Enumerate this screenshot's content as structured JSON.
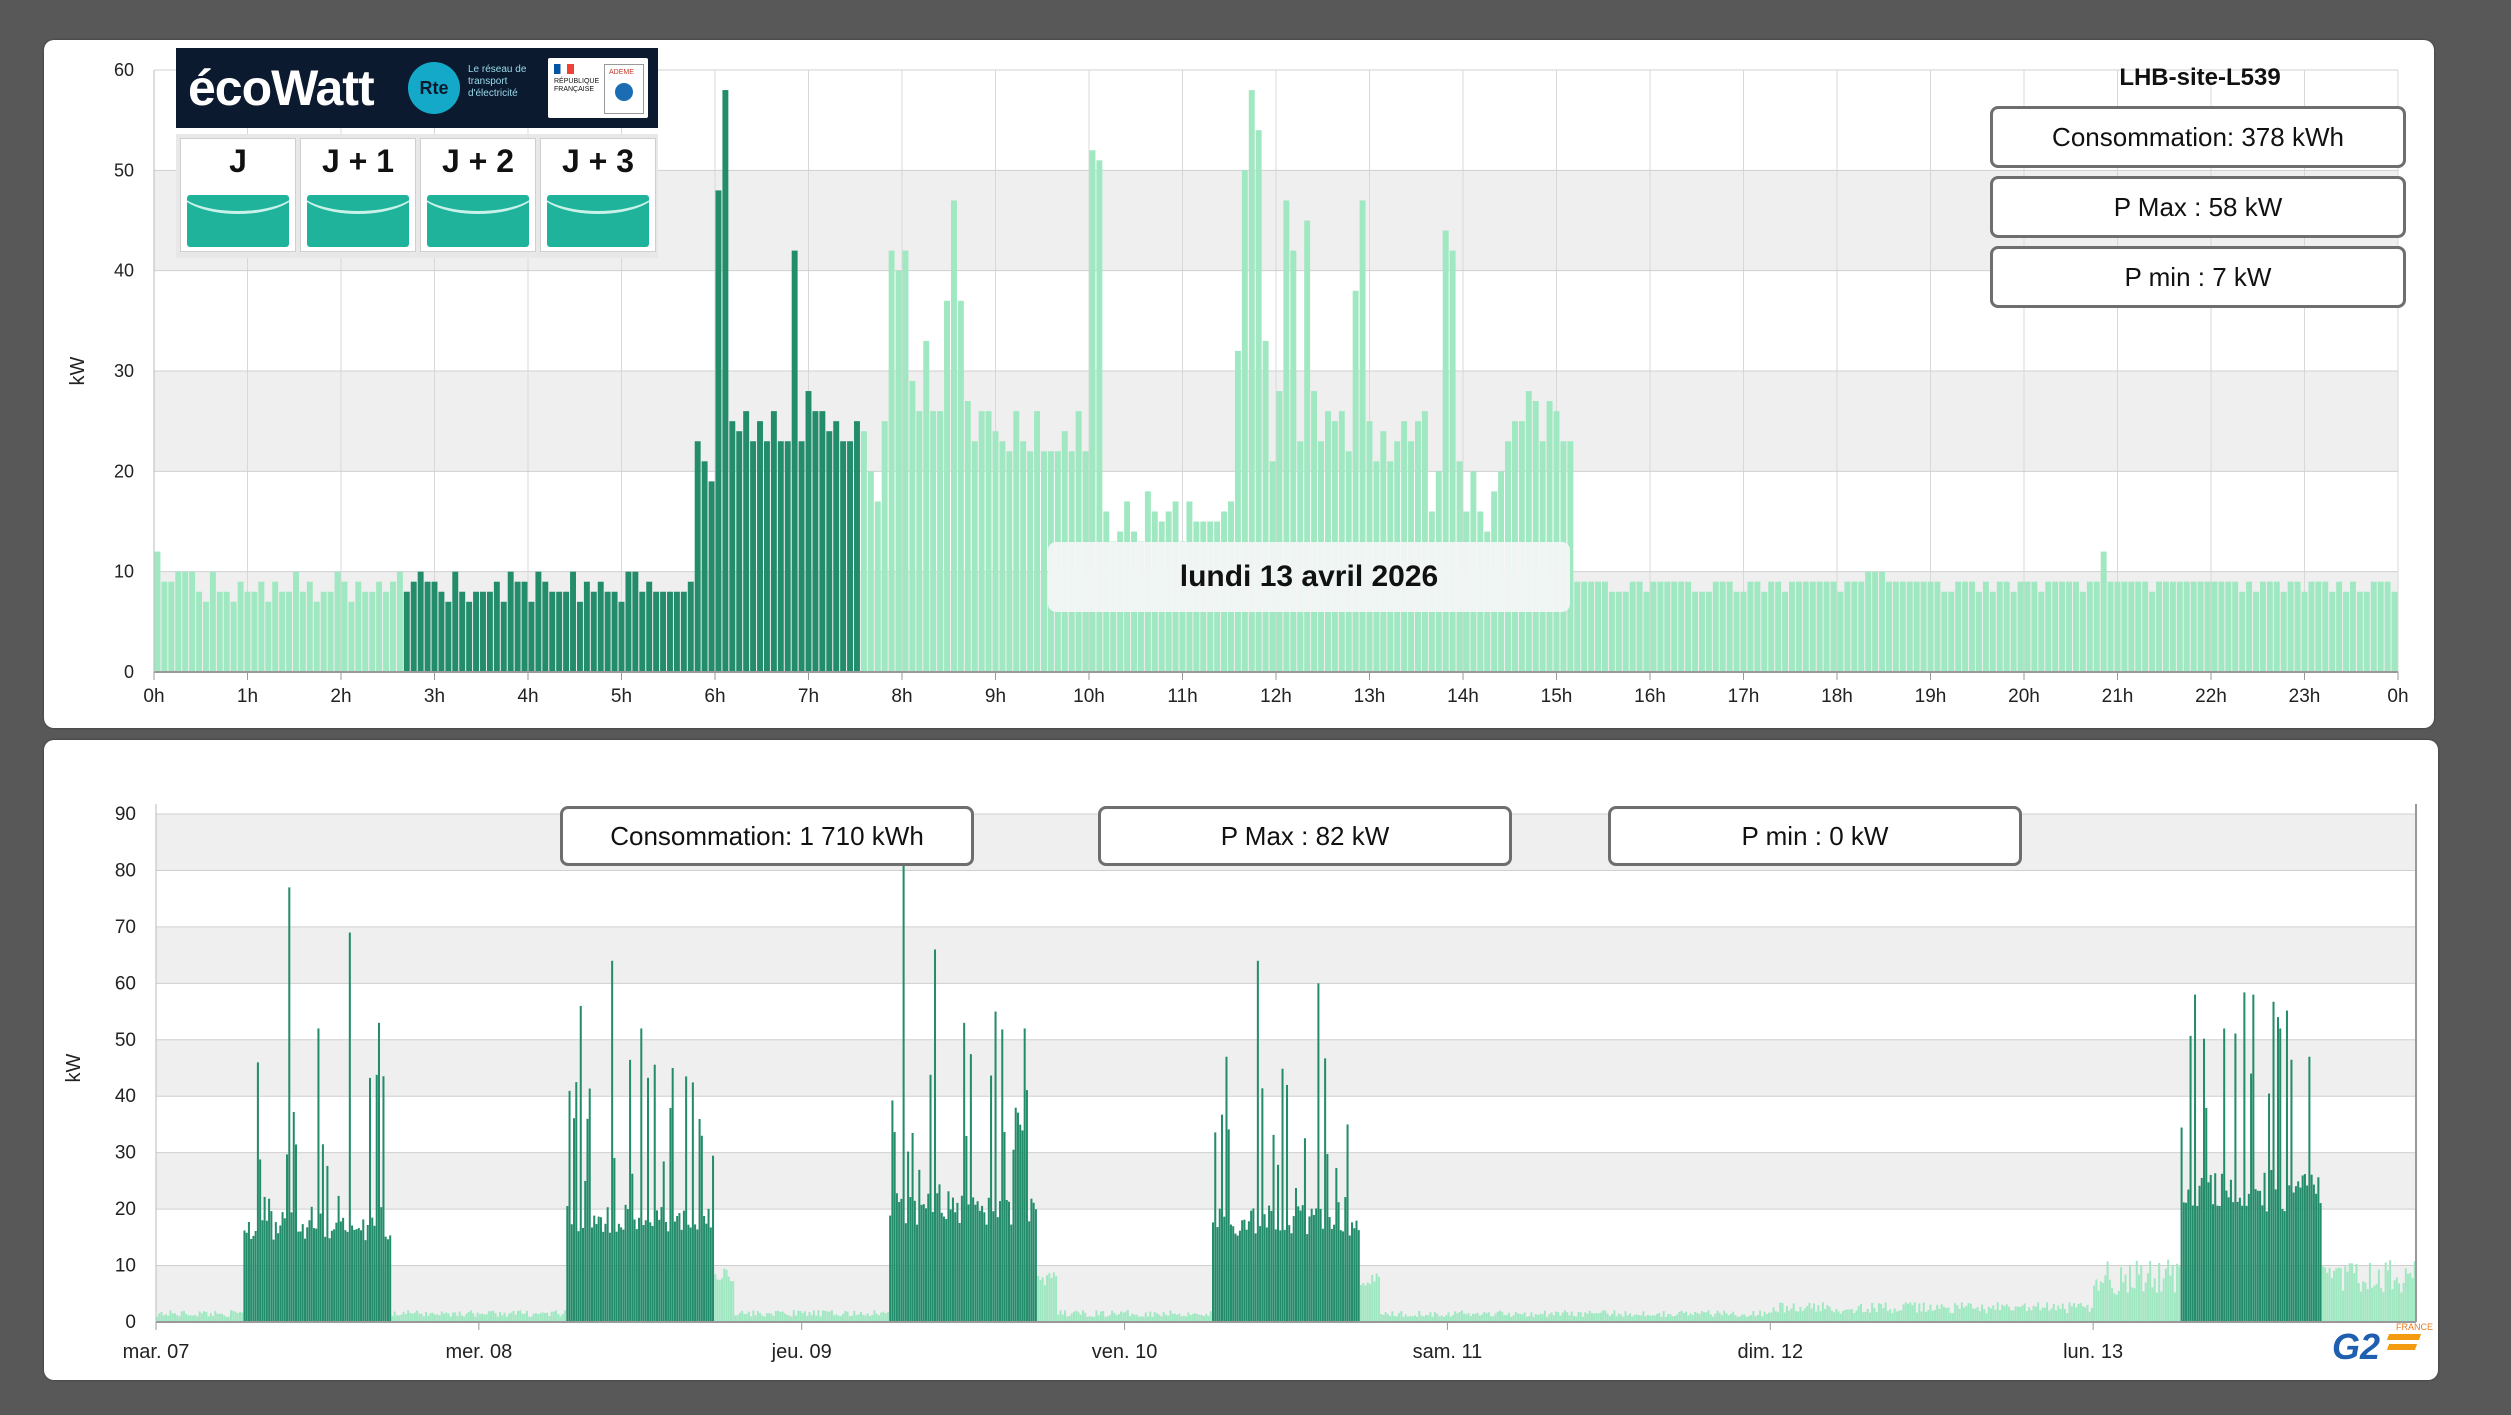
{
  "top_panel": {
    "site_name": "LHB-site-L539",
    "consommation": "Consommation: 378 kWh",
    "pmax": "P Max :  58 kW",
    "pmin": "P min : 7 kW",
    "date": "lundi 13 avril 2026"
  },
  "bottom_panel": {
    "consommation": "Consommation: 1 710 kWh",
    "pmax": "P Max :  82 kW",
    "pmin": "P min : 0 kW"
  },
  "ecowatt": {
    "logo": "écoWatt",
    "rte_badge": "Rte",
    "rte_text": "Le réseau de transport d'électricité",
    "rf_text": "RÉPUBLIQUE FRANÇAISE",
    "ademe": "ADEME",
    "days": [
      "J",
      "J + 1",
      "J + 2",
      "J + 3"
    ],
    "status_color": "#1fb39b"
  },
  "brand": {
    "g2": "G2",
    "france": "FRANCE"
  },
  "colors": {
    "dark_bar": "#238c6a",
    "light_bar": "#9fe8c1",
    "band": "#efefef"
  },
  "chart_data": [
    {
      "type": "bar",
      "ylabel": "kW",
      "ylim": [
        0,
        60
      ],
      "yticks": [
        0,
        10,
        20,
        30,
        40,
        50,
        60
      ],
      "xticks": [
        "0h",
        "1h",
        "2h",
        "3h",
        "4h",
        "5h",
        "6h",
        "7h",
        "8h",
        "9h",
        "10h",
        "11h",
        "12h",
        "13h",
        "14h",
        "15h",
        "16h",
        "17h",
        "18h",
        "19h",
        "20h",
        "21h",
        "22h",
        "23h",
        "0h"
      ],
      "interval_minutes": 10,
      "highlight_range_hours": [
        6,
        17
      ],
      "values": [
        12,
        9,
        9,
        10,
        10,
        10,
        8,
        7,
        10,
        8,
        8,
        7,
        9,
        8,
        8,
        9,
        7,
        9,
        8,
        8,
        10,
        8,
        9,
        7,
        8,
        8,
        10,
        9,
        7,
        9,
        8,
        8,
        9,
        8,
        9,
        10,
        8,
        9,
        10,
        9,
        9,
        8,
        7,
        10,
        8,
        7,
        8,
        8,
        8,
        9,
        7,
        10,
        9,
        9,
        7,
        10,
        9,
        8,
        8,
        8,
        10,
        7,
        9,
        8,
        9,
        8,
        8,
        7,
        10,
        10,
        8,
        9,
        8,
        8,
        8,
        8,
        8,
        9,
        23,
        21,
        19,
        48,
        58,
        25,
        24,
        26,
        23,
        25,
        23,
        26,
        23,
        23,
        42,
        23,
        28,
        26,
        26,
        24,
        25,
        23,
        23,
        25,
        24,
        20,
        17,
        25,
        42,
        40,
        42,
        29,
        26,
        33,
        26,
        26,
        37,
        47,
        37,
        27,
        23,
        26,
        26,
        24,
        23,
        22,
        26,
        23,
        22,
        26,
        22,
        22,
        22,
        24,
        22,
        26,
        22,
        52,
        51,
        16,
        13,
        14,
        17,
        14,
        13,
        18,
        16,
        15,
        16,
        17,
        13,
        17,
        15,
        15,
        15,
        15,
        16,
        17,
        32,
        50,
        58,
        54,
        33,
        21,
        28,
        47,
        42,
        23,
        45,
        28,
        23,
        26,
        25,
        26,
        22,
        38,
        47,
        25,
        21,
        24,
        21,
        23,
        25,
        23,
        25,
        26,
        16,
        20,
        44,
        42,
        21,
        16,
        20,
        16,
        14,
        18,
        20,
        23,
        25,
        25,
        28,
        27,
        23,
        27,
        26,
        23,
        23,
        9,
        9,
        9,
        9,
        9,
        8,
        8,
        8,
        9,
        9,
        8,
        9,
        9,
        9,
        9,
        9,
        9,
        8,
        8,
        8,
        9,
        9,
        9,
        8,
        8,
        9,
        9,
        8,
        9,
        9,
        8,
        9,
        9,
        9,
        9,
        9,
        9,
        9,
        8,
        9,
        9,
        9,
        10,
        10,
        10,
        9,
        9,
        9,
        9,
        9,
        9,
        9,
        9,
        8,
        8,
        9,
        9,
        9,
        8,
        9,
        8,
        9,
        9,
        8,
        9,
        9,
        9,
        8,
        9,
        9,
        9,
        9,
        9,
        8,
        9,
        9,
        12,
        9,
        9,
        9,
        9,
        9,
        9,
        8,
        9,
        9,
        9,
        9,
        9,
        9,
        9,
        9,
        9,
        9,
        9,
        9,
        8,
        9,
        8,
        9,
        9,
        9,
        8,
        9,
        9,
        8,
        9,
        9,
        9,
        8,
        9,
        8,
        9,
        8,
        8,
        9,
        9,
        9,
        8
      ]
    },
    {
      "type": "bar",
      "ylabel": "kW",
      "ylim": [
        0,
        90
      ],
      "yticks": [
        0,
        10,
        20,
        30,
        40,
        50,
        60,
        70,
        80,
        90
      ],
      "categories": [
        "mar. 07",
        "mer. 08",
        "jeu. 09",
        "ven. 10",
        "sam. 11",
        "dim. 12",
        "lun. 13"
      ],
      "resolution": "10 min",
      "days": [
        {
          "day": "mar. 07",
          "baseline_kw": 1.5,
          "active_start_h": 6.5,
          "active_end_h": 17.5,
          "active_level_kw": 17,
          "peaks_kw": [
            46,
            77,
            52,
            69,
            53
          ],
          "tail_kw": 0
        },
        {
          "day": "mer. 08",
          "baseline_kw": 1.5,
          "active_start_h": 6.5,
          "active_end_h": 17.5,
          "active_level_kw": 18,
          "peaks_kw": [
            56,
            64,
            52,
            45,
            33
          ],
          "tail_kw": 9
        },
        {
          "day": "jeu. 09",
          "baseline_kw": 1.5,
          "active_start_h": 6.5,
          "active_end_h": 17.5,
          "active_level_kw": 20,
          "peaks_kw": [
            82,
            66,
            53,
            55,
            52
          ],
          "tail_kw": 8
        },
        {
          "day": "ven. 10",
          "baseline_kw": 1.5,
          "active_start_h": 6.5,
          "active_end_h": 17.5,
          "active_level_kw": 18,
          "peaks_kw": [
            47,
            64,
            42,
            60,
            35
          ],
          "tail_kw": 8
        },
        {
          "day": "sam. 11",
          "baseline_kw": 1.5,
          "active_start_h": 0,
          "active_end_h": 0,
          "active_level_kw": 0,
          "peaks_kw": [],
          "tail_kw": 0
        },
        {
          "day": "dim. 12",
          "baseline_kw": 2.5,
          "active_start_h": 0,
          "active_end_h": 0,
          "active_level_kw": 0,
          "peaks_kw": [],
          "tail_kw": 0
        },
        {
          "day": "lun. 13",
          "baseline_kw": 8,
          "active_start_h": 6.5,
          "active_end_h": 17,
          "active_level_kw": 23,
          "peaks_kw": [
            58,
            52,
            58,
            52,
            47
          ],
          "tail_kw": 9
        }
      ]
    }
  ]
}
